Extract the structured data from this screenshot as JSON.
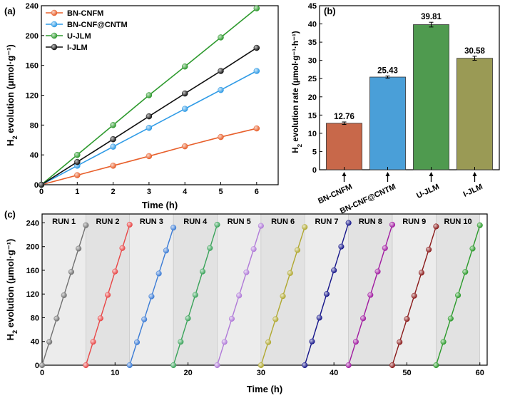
{
  "chart_data": [
    {
      "panel_label": "(a)",
      "type": "line",
      "xlabel": "Time (h)",
      "ylabel": "H2 evolution (μmol·g⁻¹)",
      "xlim": [
        0,
        6.6
      ],
      "ylim": [
        0,
        240
      ],
      "x_ticks": [
        0,
        1,
        2,
        3,
        4,
        5,
        6
      ],
      "y_ticks": [
        0,
        40,
        80,
        120,
        160,
        200,
        240
      ],
      "legend_position": "top-left",
      "x": [
        0,
        1,
        2,
        3,
        4,
        5,
        6
      ],
      "series": [
        {
          "name": "BN-CNFM",
          "color": "#e8602c",
          "values": [
            0,
            12.8,
            25.5,
            38.3,
            51.5,
            64,
            75.5
          ]
        },
        {
          "name": "BN-CNF@CNTM",
          "color": "#2f9be6",
          "values": [
            0,
            25.5,
            51,
            76.3,
            101.7,
            127,
            152.5
          ]
        },
        {
          "name": "U-JLM",
          "color": "#2e9a2e",
          "values": [
            0,
            40,
            80,
            120,
            158.5,
            197.5,
            236.5
          ]
        },
        {
          "name": "I-JLM",
          "color": "#111111",
          "values": [
            0,
            30.5,
            61,
            91.7,
            122.3,
            152.5,
            183.5
          ]
        }
      ]
    },
    {
      "panel_label": "(b)",
      "type": "bar",
      "ylabel": "H2 evolution rate (μmol·g⁻¹·h⁻¹)",
      "ylim": [
        0,
        45
      ],
      "y_ticks": [
        0,
        5,
        10,
        15,
        20,
        25,
        30,
        35,
        40,
        45
      ],
      "categories": [
        "BN-CNFM",
        "BN-CNF@CNTM",
        "U-JLM",
        "I-JLM"
      ],
      "values": [
        12.76,
        25.43,
        39.81,
        30.58
      ],
      "value_labels": [
        "12.76",
        "25.43",
        "39.81",
        "30.58"
      ],
      "errors": [
        0.35,
        0.3,
        0.65,
        0.55
      ],
      "colors": [
        "#c8684a",
        "#4a9fd8",
        "#4f9a4f",
        "#9a9a55"
      ]
    },
    {
      "panel_label": "(c)",
      "type": "line",
      "xlabel": "Time (h)",
      "ylabel": "H2 evolution (μmol·g⁻¹)",
      "xlim": [
        0,
        61
      ],
      "ylim": [
        0,
        255
      ],
      "x_ticks": [
        0,
        10,
        20,
        30,
        40,
        50,
        60
      ],
      "y_ticks": [
        0,
        40,
        80,
        120,
        160,
        200,
        240
      ],
      "runs": [
        {
          "name": "RUN 1",
          "color": "#707070",
          "final": 236
        },
        {
          "name": "RUN 2",
          "color": "#e84646",
          "final": 237
        },
        {
          "name": "RUN 3",
          "color": "#3a7bd5",
          "final": 232
        },
        {
          "name": "RUN 4",
          "color": "#3aa35a",
          "final": 237
        },
        {
          "name": "RUN 5",
          "color": "#b07ad8",
          "final": 235
        },
        {
          "name": "RUN 6",
          "color": "#b0a830",
          "final": 233
        },
        {
          "name": "RUN 7",
          "color": "#15158a",
          "final": 240
        },
        {
          "name": "RUN 8",
          "color": "#a01aa0",
          "final": 237
        },
        {
          "name": "RUN 9",
          "color": "#8a1a1a",
          "final": 234
        },
        {
          "name": "RUN 10",
          "color": "#2a9a2a",
          "final": 236
        }
      ]
    }
  ]
}
